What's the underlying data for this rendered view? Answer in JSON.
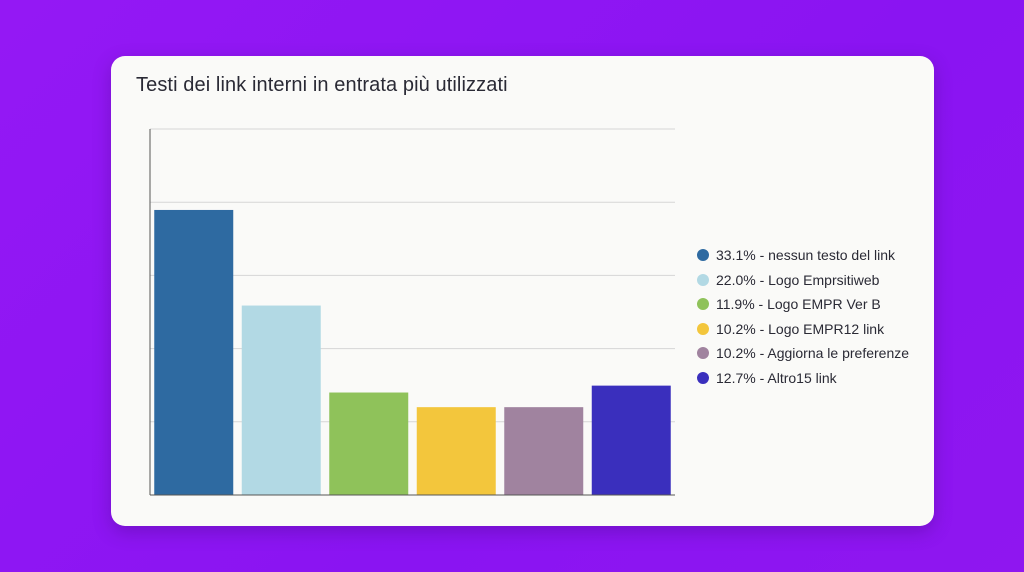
{
  "card": {
    "title": "Testi dei link interni in entrata più utilizzati"
  },
  "chart_data": {
    "type": "bar",
    "title": "Testi dei link interni in entrata più utilizzati",
    "categories": [
      "nessun testo del link",
      "Logo Emprsitiweb",
      "Logo EMPR Ver B",
      "Logo EMPR12 link",
      "Aggiorna le preferenze",
      "Altro15 link"
    ],
    "values": [
      33.1,
      22.0,
      11.9,
      10.2,
      10.2,
      12.7
    ],
    "unit": "%",
    "colors": [
      "#2e6aa1",
      "#b2d9e4",
      "#8fc25a",
      "#f3c63c",
      "#a0839f",
      "#3a2fbd"
    ],
    "ylim": [
      0,
      42.5
    ],
    "gridlines": [
      8.5,
      17,
      25.5,
      34,
      42.5
    ],
    "grid": true,
    "legend_position": "right",
    "legend": [
      "33.1% - nessun testo del link",
      "22.0% - Logo Emprsitiweb",
      "11.9% - Logo EMPR Ver B",
      "10.2% - Logo EMPR12 link",
      "10.2% - Aggiorna le preferenze",
      "12.7% - Altro15 link"
    ]
  }
}
